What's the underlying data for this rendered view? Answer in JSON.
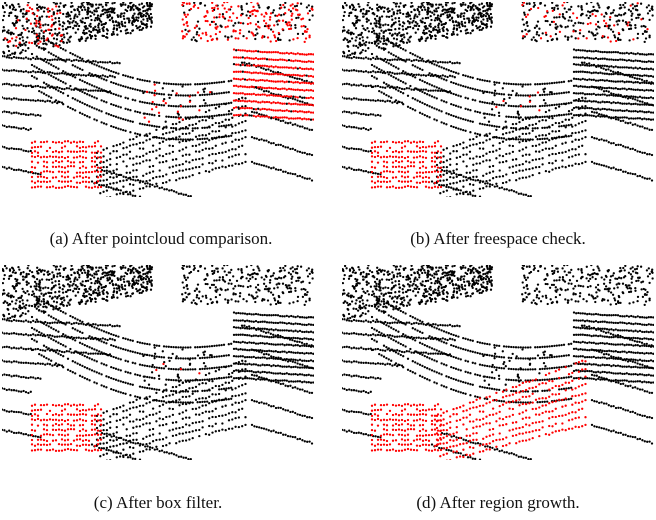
{
  "figure": {
    "panels": [
      {
        "id": "a",
        "caption": "(a) After pointcloud comparison.",
        "highlight": "comparison"
      },
      {
        "id": "b",
        "caption": "(b) After freespace check.",
        "highlight": "freespace"
      },
      {
        "id": "c",
        "caption": "(c) After box filter.",
        "highlight": "box"
      },
      {
        "id": "d",
        "caption": "(d) After region growth.",
        "highlight": "region"
      }
    ],
    "colors": {
      "points": "#000000",
      "highlighted": "#ff0000",
      "background": "#ffffff"
    }
  }
}
